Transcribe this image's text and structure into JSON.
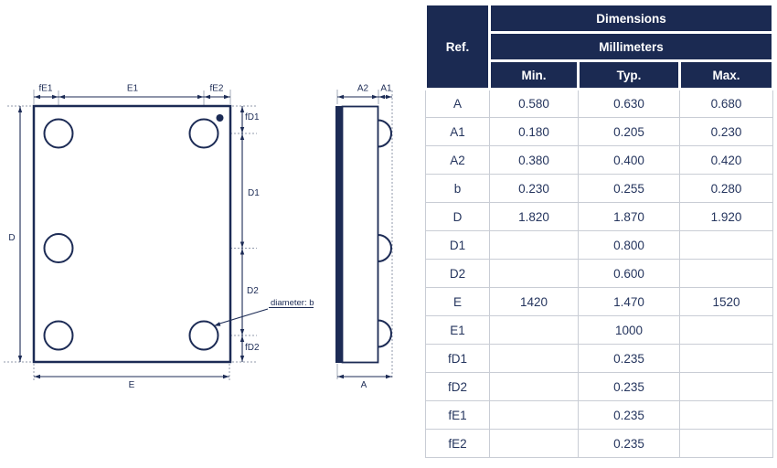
{
  "colors": {
    "navy": "#1c2b55",
    "header_bg": "#1b2a52",
    "cell_text": "#25355e",
    "grid_border": "#c9cdd5",
    "centerline_gray": "#a3abba"
  },
  "table": {
    "ref_header": "Ref.",
    "dimensions_header": "Dimensions",
    "unit_header": "Millimeters",
    "col_headers": [
      "Min.",
      "Typ.",
      "Max."
    ],
    "rows": [
      {
        "ref": "A",
        "min": "0.580",
        "typ": "0.630",
        "max": "0.680"
      },
      {
        "ref": "A1",
        "min": "0.180",
        "typ": "0.205",
        "max": "0.230"
      },
      {
        "ref": "A2",
        "min": "0.380",
        "typ": "0.400",
        "max": "0.420"
      },
      {
        "ref": "b",
        "min": "0.230",
        "typ": "0.255",
        "max": "0.280"
      },
      {
        "ref": "D",
        "min": "1.820",
        "typ": "1.870",
        "max": "1.920"
      },
      {
        "ref": "D1",
        "min": "",
        "typ": "0.800",
        "max": ""
      },
      {
        "ref": "D2",
        "min": "",
        "typ": "0.600",
        "max": ""
      },
      {
        "ref": "E",
        "min": "1420",
        "typ": "1.470",
        "max": "1520"
      },
      {
        "ref": "E1",
        "min": "",
        "typ": "1000",
        "max": ""
      },
      {
        "ref": "fD1",
        "min": "",
        "typ": "0.235",
        "max": ""
      },
      {
        "ref": "fD2",
        "min": "",
        "typ": "0.235",
        "max": ""
      },
      {
        "ref": "fE1",
        "min": "",
        "typ": "0.235",
        "max": ""
      },
      {
        "ref": "fE2",
        "min": "",
        "typ": "0.235",
        "max": ""
      }
    ]
  },
  "diagram": {
    "front_view": {
      "labels": {
        "fE1": "fE1",
        "E1": "E1",
        "fE2": "fE2",
        "D": "D",
        "E": "E",
        "fD1": "fD1",
        "D1": "D1",
        "D2": "D2",
        "fD2": "fD2",
        "diameter_note": "diameter: b"
      }
    },
    "side_view": {
      "labels": {
        "A2": "A2",
        "A1": "A1",
        "A": "A"
      }
    }
  }
}
